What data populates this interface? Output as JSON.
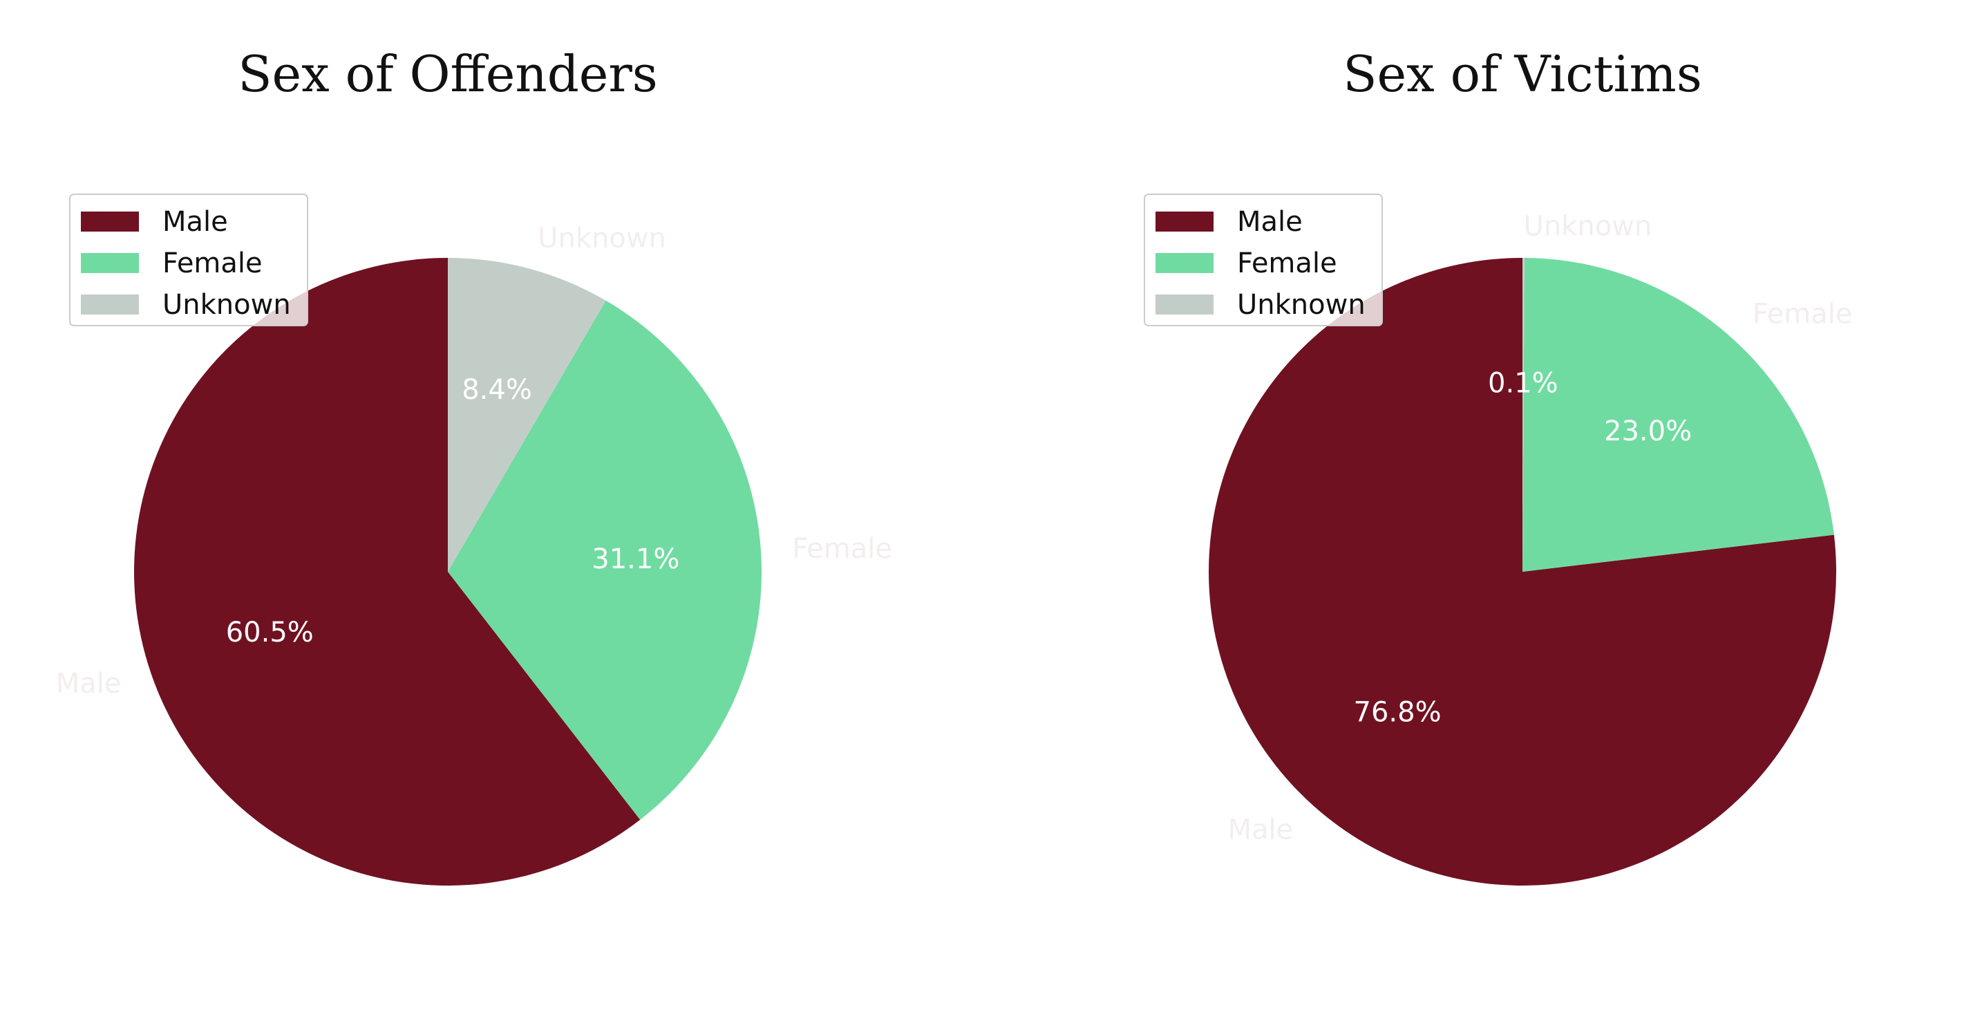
{
  "colors": {
    "Male": "#701122",
    "Female": "#6fdba1",
    "Unknown": "#c3cdc7"
  },
  "chart_data": [
    {
      "type": "pie",
      "title": "Sex of Offenders",
      "slices": [
        {
          "label": "Male",
          "value": 60.5,
          "pct_label": "60.5%"
        },
        {
          "label": "Female",
          "value": 31.1,
          "pct_label": "31.1%"
        },
        {
          "label": "Unknown",
          "value": 8.4,
          "pct_label": "8.4%"
        }
      ],
      "legend": {
        "entries": [
          "Male",
          "Female",
          "Unknown"
        ],
        "placement": "upper-left"
      }
    },
    {
      "type": "pie",
      "title": "Sex of Victims",
      "slices": [
        {
          "label": "Male",
          "value": 76.8,
          "pct_label": "76.8%"
        },
        {
          "label": "Female",
          "value": 23.0,
          "pct_label": "23.0%"
        },
        {
          "label": "Unknown",
          "value": 0.1,
          "pct_label": "0.1%"
        }
      ],
      "legend": {
        "entries": [
          "Male",
          "Female",
          "Unknown"
        ],
        "placement": "upper-left"
      }
    }
  ]
}
